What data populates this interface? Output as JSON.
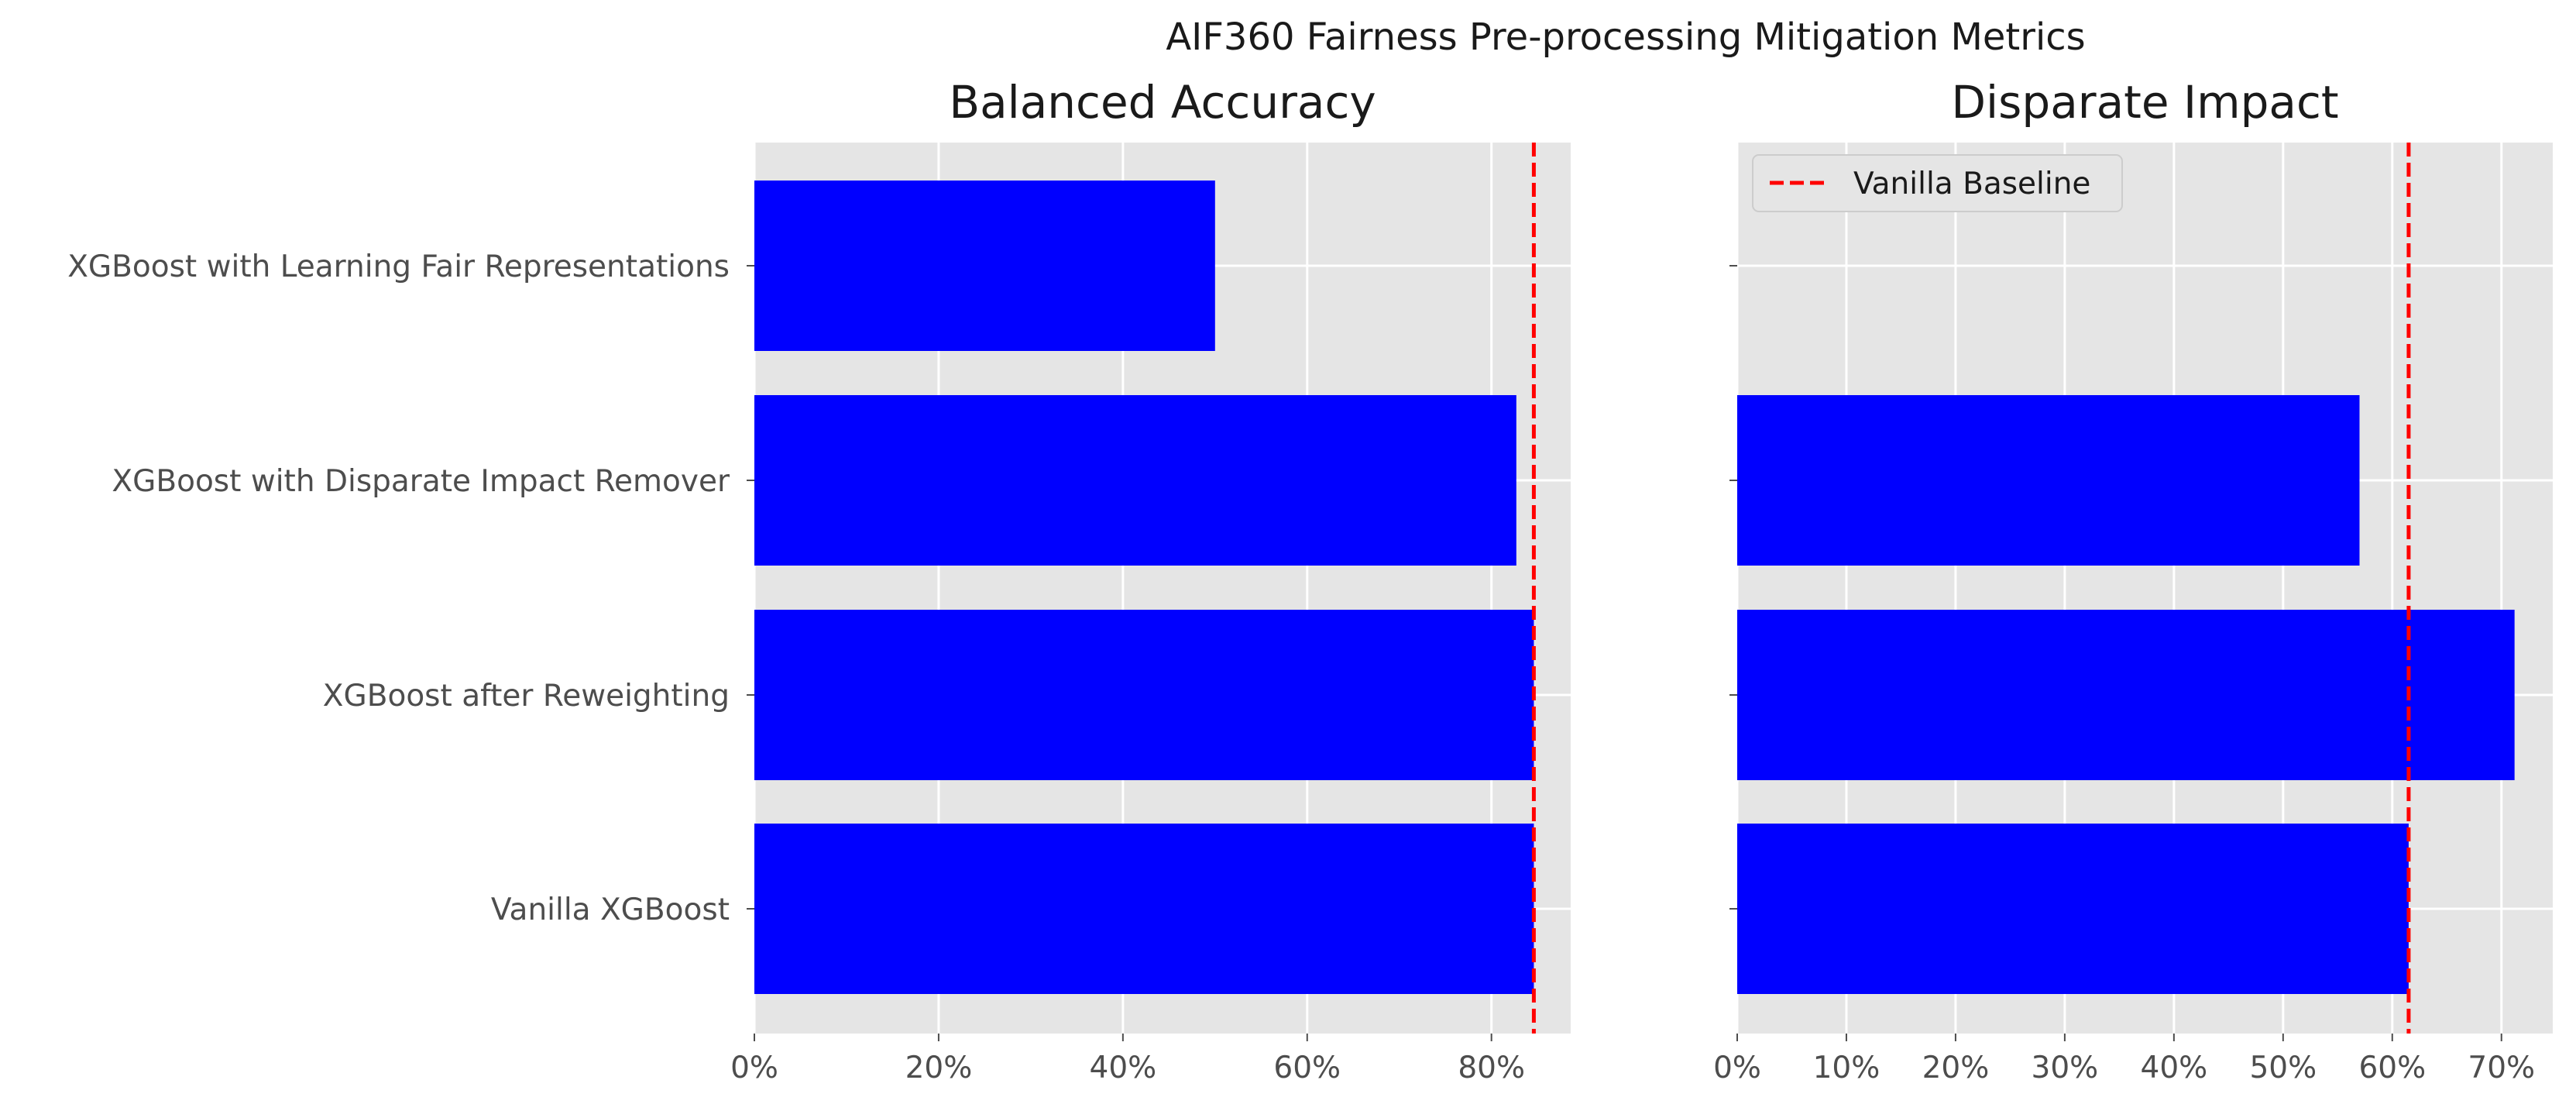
{
  "chart_data": {
    "type": "bar",
    "orientation": "horizontal",
    "suptitle": "AIF360 Fairness Pre-processing Mitigation Metrics",
    "categories": [
      "XGBoost with Learning Fair Representations",
      "XGBoost with Disparate Impact Remover",
      "XGBoost after Reweighting",
      "Vanilla XGBoost"
    ],
    "bar_color": "#0000ff",
    "baseline_color": "#ff0000",
    "grid": true,
    "panels": [
      {
        "title": "Balanced Accuracy",
        "values": [
          0.5,
          0.827,
          0.846,
          0.846
        ],
        "xlim": [
          0,
          0.886
        ],
        "xticks": [
          0,
          0.2,
          0.4,
          0.6,
          0.8
        ],
        "xtick_labels": [
          "0%",
          "20%",
          "40%",
          "60%",
          "80%"
        ],
        "baseline": 0.846,
        "show_legend": false
      },
      {
        "title": "Disparate Impact",
        "values": [
          0.0,
          0.57,
          0.712,
          0.615
        ],
        "xlim": [
          0,
          0.747
        ],
        "xticks": [
          0,
          0.1,
          0.2,
          0.3,
          0.4,
          0.5,
          0.6,
          0.7
        ],
        "xtick_labels": [
          "0%",
          "10%",
          "20%",
          "30%",
          "40%",
          "50%",
          "60%",
          "70%"
        ],
        "baseline": 0.615,
        "show_legend": true
      }
    ],
    "legend": {
      "label": "Vanilla Baseline",
      "placement": "top-left"
    }
  }
}
